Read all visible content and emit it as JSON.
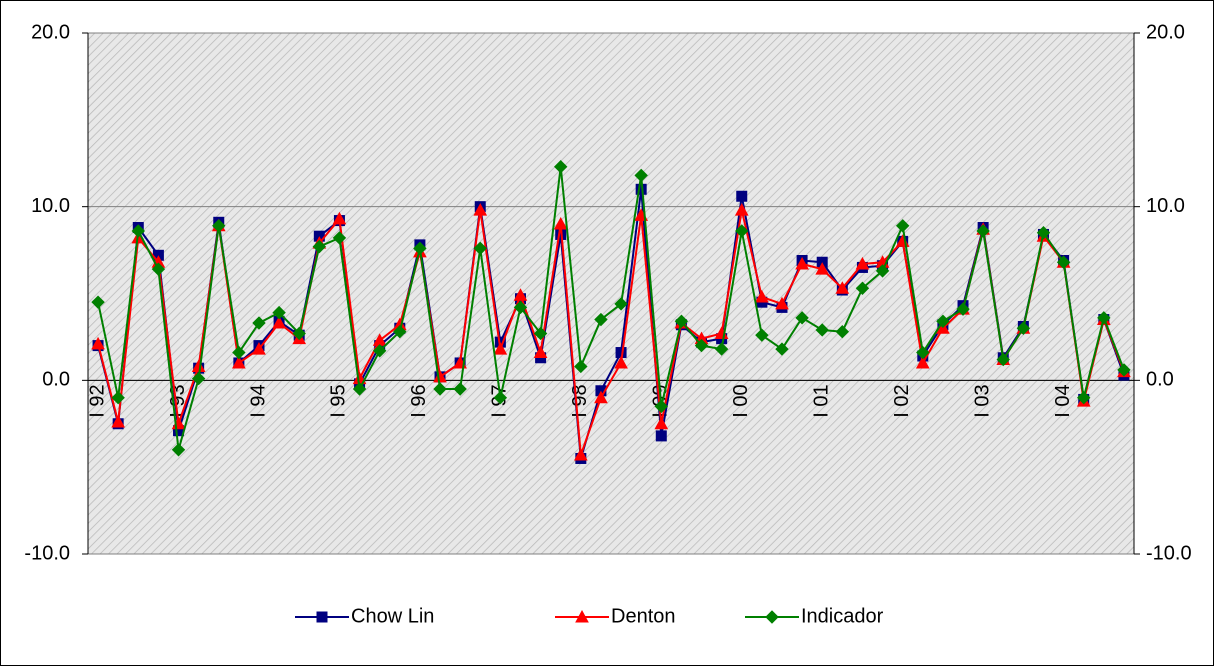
{
  "chart_data": {
    "type": "line",
    "categories": [
      "I 92",
      null,
      null,
      null,
      "I 93",
      null,
      null,
      null,
      "I 94",
      null,
      null,
      null,
      "I 95",
      null,
      null,
      null,
      "I 96",
      null,
      null,
      null,
      "I 97",
      null,
      null,
      null,
      "I 98",
      null,
      null,
      null,
      "I 99",
      null,
      null,
      null,
      "I 00",
      null,
      null,
      null,
      "I 01",
      null,
      null,
      null,
      "I 02",
      null,
      null,
      null,
      "I 03",
      null,
      null,
      null,
      "I 04",
      null,
      null,
      null
    ],
    "series": [
      {
        "name": "Chow Lin",
        "color": "#000080",
        "marker": "square",
        "values": [
          2.0,
          -2.5,
          8.8,
          7.2,
          -2.9,
          0.7,
          9.1,
          1.0,
          2.0,
          3.4,
          2.6,
          8.3,
          9.2,
          -0.2,
          2.0,
          3.0,
          7.8,
          0.2,
          1.0,
          10.0,
          2.2,
          4.7,
          1.3,
          8.4,
          -4.5,
          -0.6,
          1.6,
          11.0,
          -3.2,
          3.2,
          2.2,
          2.4,
          10.6,
          4.5,
          4.2,
          6.9,
          6.8,
          5.2,
          6.5,
          6.6,
          8.0,
          1.4,
          3.2,
          4.3,
          8.8,
          1.3,
          3.1,
          8.4,
          6.9,
          -1.1,
          3.5,
          0.3
        ]
      },
      {
        "name": "Denton",
        "color": "#ff0000",
        "marker": "triangle",
        "values": [
          2.1,
          -2.4,
          8.2,
          6.8,
          -2.5,
          0.8,
          8.9,
          1.0,
          1.8,
          3.3,
          2.4,
          7.9,
          9.3,
          0.1,
          2.3,
          3.2,
          7.4,
          0.2,
          1.0,
          9.8,
          1.8,
          4.9,
          1.6,
          9.0,
          -4.3,
          -1.0,
          1.0,
          9.5,
          -2.5,
          3.3,
          2.4,
          2.7,
          9.8,
          4.8,
          4.4,
          6.7,
          6.4,
          5.3,
          6.7,
          6.8,
          8.0,
          1.0,
          3.0,
          4.1,
          8.7,
          1.2,
          3.0,
          8.3,
          6.8,
          -1.2,
          3.5,
          0.5
        ]
      },
      {
        "name": "Indicador",
        "color": "#008000",
        "marker": "diamond",
        "values": [
          4.5,
          -1.0,
          8.6,
          6.4,
          -4.0,
          0.1,
          8.9,
          1.6,
          3.3,
          3.9,
          2.7,
          7.7,
          8.2,
          -0.5,
          1.7,
          2.8,
          7.6,
          -0.5,
          -0.5,
          7.6,
          -1.0,
          4.2,
          2.7,
          12.3,
          0.8,
          3.5,
          4.4,
          11.8,
          -1.5,
          3.4,
          2.0,
          1.8,
          8.6,
          2.6,
          1.8,
          3.6,
          2.9,
          2.8,
          5.3,
          6.3,
          8.9,
          1.6,
          3.4,
          4.1,
          8.6,
          1.2,
          3.0,
          8.5,
          6.8,
          -1.0,
          3.6,
          0.6
        ]
      }
    ],
    "ylim": [
      -10,
      20
    ],
    "yticks": [
      {
        "value": -10,
        "label": "-10.0"
      },
      {
        "value": 0,
        "label": "0.0"
      },
      {
        "value": 10,
        "label": "10.0"
      },
      {
        "value": 20,
        "label": "20.0"
      }
    ],
    "y2lim": [
      -10,
      20
    ],
    "y2ticks": [
      {
        "value": -10,
        "label": "-10.0"
      },
      {
        "value": 0,
        "label": "0.0"
      },
      {
        "value": 10,
        "label": "10.0"
      },
      {
        "value": 20,
        "label": "20.0"
      }
    ],
    "grid": true,
    "legend": "bottom"
  }
}
